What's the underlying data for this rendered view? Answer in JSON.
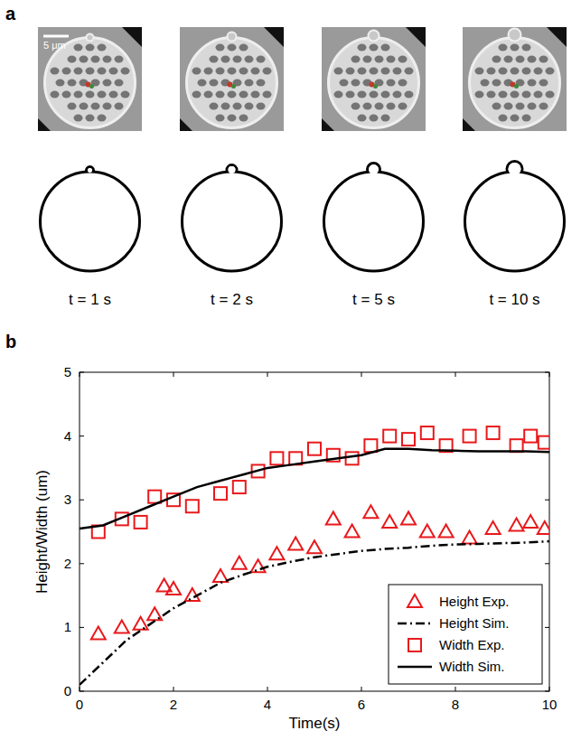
{
  "panel_a": {
    "label": "a",
    "scale_bar": "5 μm",
    "frames": [
      "t = 1 s",
      "t = 2 s",
      "t = 5 s",
      "t = 10 s"
    ]
  },
  "chart_data": {
    "type": "line",
    "panel_label": "b",
    "x_label": "Time(s)",
    "y_label": "Height/Width (um)",
    "xlim": [
      0,
      10
    ],
    "xticks": [
      0,
      2,
      4,
      6,
      8,
      10
    ],
    "ylim": [
      0,
      5
    ],
    "yticks": [
      0,
      1,
      2,
      3,
      4,
      5
    ],
    "grid": false,
    "legend": "lower right",
    "series": [
      {
        "name": "Height Exp.",
        "type": "scatter",
        "marker": "triangle",
        "color": "#e8191c",
        "x": [
          0.4,
          0.9,
          1.3,
          1.6,
          1.8,
          2.0,
          2.4,
          3.0,
          3.4,
          3.8,
          4.2,
          4.6,
          5.0,
          5.4,
          5.8,
          6.2,
          6.6,
          7.0,
          7.4,
          7.8,
          8.3,
          8.8,
          9.3,
          9.6,
          9.9
        ],
        "values": [
          0.9,
          1.0,
          1.05,
          1.2,
          1.65,
          1.6,
          1.5,
          1.8,
          2.0,
          1.95,
          2.15,
          2.3,
          2.25,
          2.7,
          2.5,
          2.8,
          2.65,
          2.7,
          2.5,
          2.5,
          2.4,
          2.55,
          2.6,
          2.65,
          2.55
        ]
      },
      {
        "name": "Height Sim.",
        "type": "line",
        "line_style": "dashdot",
        "color": "#000000",
        "x": [
          0,
          0.5,
          1,
          1.5,
          2,
          2.5,
          3,
          3.5,
          4,
          4.5,
          5,
          5.5,
          6,
          6.5,
          7,
          7.5,
          8,
          8.5,
          9,
          9.5,
          10
        ],
        "values": [
          0.1,
          0.45,
          0.8,
          1.05,
          1.3,
          1.5,
          1.7,
          1.83,
          1.95,
          2.03,
          2.1,
          2.15,
          2.2,
          2.23,
          2.25,
          2.28,
          2.3,
          2.31,
          2.32,
          2.33,
          2.35
        ]
      },
      {
        "name": "Width Exp.",
        "type": "scatter",
        "marker": "square",
        "color": "#e8191c",
        "x": [
          0.4,
          0.9,
          1.3,
          1.6,
          2.0,
          2.4,
          3.0,
          3.4,
          3.8,
          4.2,
          4.6,
          5.0,
          5.4,
          5.8,
          6.2,
          6.6,
          7.0,
          7.4,
          7.8,
          8.3,
          8.8,
          9.3,
          9.6,
          9.9
        ],
        "values": [
          2.5,
          2.7,
          2.65,
          3.05,
          3.0,
          2.9,
          3.1,
          3.2,
          3.45,
          3.65,
          3.65,
          3.8,
          3.7,
          3.65,
          3.85,
          4.0,
          3.95,
          4.05,
          3.85,
          4.0,
          4.05,
          3.85,
          4.0,
          3.9
        ]
      },
      {
        "name": "Width Sim.",
        "type": "line",
        "line_style": "solid",
        "color": "#000000",
        "x": [
          0,
          0.5,
          1,
          1.5,
          2,
          2.5,
          3,
          3.5,
          4,
          4.5,
          5,
          5.5,
          6,
          6.5,
          7,
          7.5,
          8,
          8.5,
          9,
          9.5,
          10
        ],
        "values": [
          2.55,
          2.6,
          2.75,
          2.9,
          3.05,
          3.2,
          3.3,
          3.4,
          3.5,
          3.55,
          3.6,
          3.65,
          3.7,
          3.8,
          3.8,
          3.78,
          3.77,
          3.76,
          3.76,
          3.76,
          3.75
        ]
      }
    ]
  }
}
